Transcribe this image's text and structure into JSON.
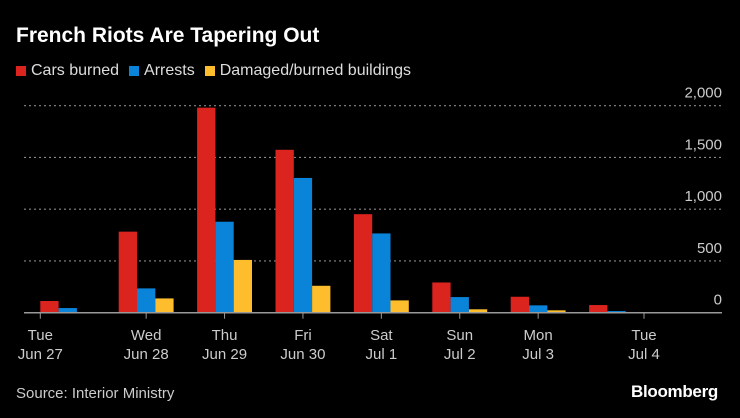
{
  "chart_data": {
    "type": "bar",
    "title": "French Riots Are Tapering Out",
    "categories": [
      [
        "Tue",
        "Jun 27"
      ],
      [
        "Wed",
        "Jun 28"
      ],
      [
        "Thu",
        "Jun 29"
      ],
      [
        "Fri",
        "Jun 30"
      ],
      [
        "Sat",
        "Jul 1"
      ],
      [
        "Sun",
        "Jul 2"
      ],
      [
        "Mon",
        "Jul 3"
      ],
      [
        "Tue",
        "Jul 4"
      ]
    ],
    "series": [
      {
        "name": "Cars burned",
        "color": "#dc241f",
        "values": [
          113,
          783,
          1981,
          1574,
          952,
          292,
          154,
          74
        ]
      },
      {
        "name": "Arrests",
        "color": "#0a84d8",
        "values": [
          45,
          235,
          879,
          1302,
          766,
          151,
          71,
          16
        ]
      },
      {
        "name": "Damaged/burned buildings",
        "color": "#fdbd2c",
        "values": [
          5,
          138,
          510,
          260,
          119,
          33,
          23,
          6
        ]
      }
    ],
    "yticks": [
      0,
      500,
      1000,
      1500,
      2000
    ],
    "ytick_labels": [
      "0",
      "500",
      "1,000",
      "1,500",
      "2,000"
    ],
    "ylim": [
      0,
      2000
    ],
    "xlabel": "",
    "ylabel": "",
    "grid": true,
    "legend": "top-left"
  },
  "source": "Source: Interior Ministry",
  "brand": "Bloomberg"
}
